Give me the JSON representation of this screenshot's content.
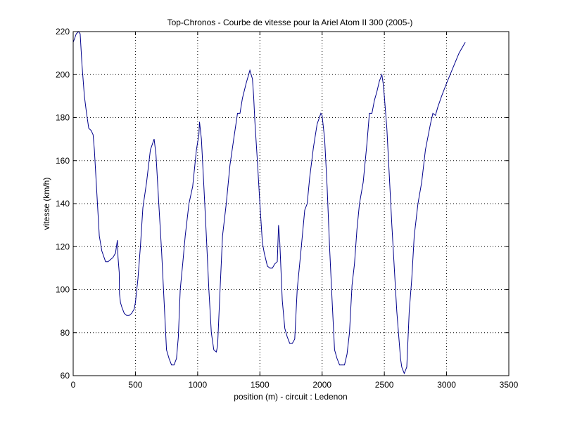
{
  "chart_data": {
    "type": "line",
    "title": "Top-Chronos - Courbe de vitesse pour la Ariel Atom II 300 (2005-)",
    "xlabel": "position (m) - circuit : Ledenon",
    "ylabel": "vitesse (km/h)",
    "xlim": [
      0,
      3500
    ],
    "ylim": [
      60,
      220
    ],
    "xticks": [
      0,
      500,
      1000,
      1500,
      2000,
      2500,
      3000,
      3500
    ],
    "yticks": [
      60,
      80,
      100,
      120,
      140,
      160,
      180,
      200,
      220
    ],
    "grid": true,
    "line_color": "#00008b",
    "series": [
      {
        "x": [
          0,
          25,
          42,
          56,
          70,
          90,
          105,
          125,
          145,
          160,
          170,
          190,
          210,
          230,
          260,
          280,
          300,
          320,
          340,
          355,
          360,
          370,
          372,
          380,
          390,
          410,
          430,
          450,
          470,
          490,
          500,
          520,
          540,
          560,
          590,
          620,
          650,
          665,
          670,
          690,
          710,
          730,
          750,
          770,
          790,
          810,
          830,
          845,
          860,
          880,
          900,
          930,
          960,
          990,
          1010,
          1015,
          1030,
          1050,
          1070,
          1090,
          1110,
          1130,
          1150,
          1160,
          1180,
          1200,
          1230,
          1260,
          1290,
          1320,
          1340,
          1360,
          1390,
          1420,
          1440,
          1450,
          1460,
          1480,
          1500,
          1520,
          1535,
          1560,
          1580,
          1600,
          1620,
          1640,
          1650,
          1660,
          1665,
          1680,
          1700,
          1720,
          1740,
          1760,
          1780,
          1800,
          1830,
          1860,
          1880,
          1900,
          1930,
          1960,
          1990,
          2000,
          2020,
          2040,
          2060,
          2080,
          2100,
          2120,
          2140,
          2160,
          2180,
          2200,
          2220,
          2240,
          2260,
          2280,
          2300,
          2330,
          2360,
          2380,
          2400,
          2420,
          2440,
          2460,
          2480,
          2490,
          2500,
          2520,
          2540,
          2560,
          2580,
          2600,
          2630,
          2640,
          2660,
          2680,
          2700,
          2720,
          2740,
          2770,
          2800,
          2830,
          2870,
          2890,
          2910,
          2930,
          2960,
          3000,
          3050,
          3100,
          3150
        ],
        "y": [
          215,
          219,
          220,
          219,
          205,
          190,
          183,
          175,
          174,
          172,
          165,
          145,
          125,
          118,
          113,
          113,
          114,
          115,
          117,
          123,
          115,
          108,
          98,
          94,
          92,
          89,
          88,
          88,
          89,
          91,
          94,
          105,
          120,
          138,
          150,
          165,
          170,
          163,
          158,
          138,
          118,
          95,
          72,
          68,
          65,
          65,
          68,
          78,
          100,
          112,
          125,
          140,
          148,
          165,
          172,
          178,
          170,
          148,
          125,
          100,
          80,
          72,
          71,
          74,
          100,
          125,
          140,
          158,
          170,
          182,
          182,
          189,
          196,
          202,
          198,
          190,
          178,
          160,
          140,
          122,
          117,
          111,
          110,
          110,
          112,
          113,
          130,
          122,
          115,
          95,
          82,
          78,
          75,
          75,
          77,
          100,
          118,
          137,
          140,
          152,
          166,
          177,
          182,
          181,
          170,
          148,
          120,
          95,
          72,
          68,
          65,
          65,
          65,
          70,
          80,
          102,
          112,
          128,
          140,
          150,
          168,
          182,
          182,
          188,
          192,
          197,
          200,
          196,
          190,
          175,
          153,
          130,
          110,
          90,
          68,
          64,
          61,
          64,
          90,
          105,
          125,
          140,
          150,
          165,
          177,
          182,
          181,
          185,
          190,
          196,
          203,
          210,
          215
        ]
      }
    ]
  }
}
